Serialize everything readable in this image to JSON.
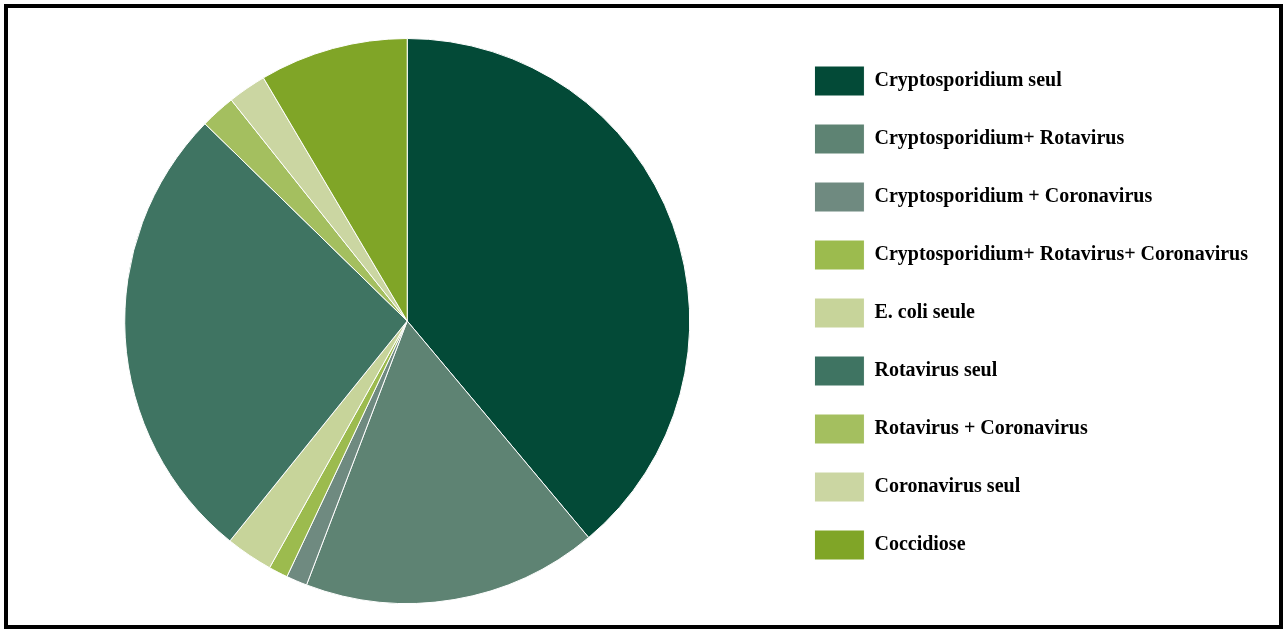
{
  "chart_data": {
    "type": "pie",
    "categories": [
      "Cryptosporidium seul",
      "Cryptosporidium+ Rotavirus",
      "Cryptosporidium + Coronavirus",
      "Cryptosporidium+ Rotavirus+ Coronavirus",
      "E. coli seule",
      "Rotavirus seul",
      "Rotavirus + Coronavirus",
      "Coronavirus seul",
      "Coccidiose"
    ],
    "values": [
      38.9,
      16.9,
      1.2,
      1.1,
      2.7,
      26.5,
      2.0,
      2.2,
      8.5
    ],
    "colors": [
      "#034a37",
      "#5e8373",
      "#6f8a80",
      "#9cbb4e",
      "#c7d49a",
      "#3f7462",
      "#a4bf5f",
      "#cbd6a2",
      "#80a527"
    ],
    "legend": "right"
  }
}
